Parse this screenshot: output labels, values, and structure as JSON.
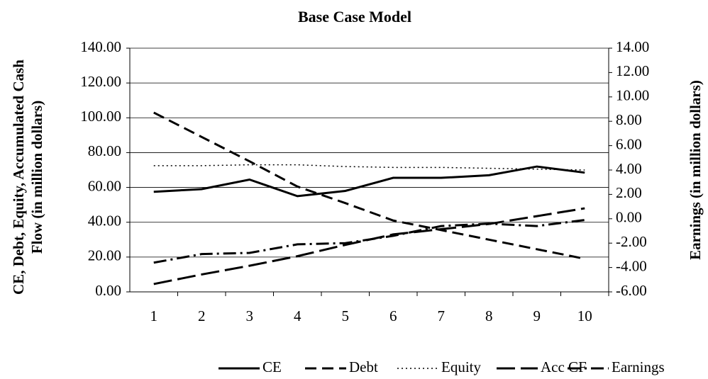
{
  "chart_data": {
    "type": "line",
    "title": "Base Case Model",
    "ylabel": [
      "CE, Debt, Equity, Accumulated Cash",
      "Flow (in million dollars)"
    ],
    "y2label": "Earnings (in million dollars)",
    "categories": [
      "1",
      "2",
      "3",
      "4",
      "5",
      "6",
      "7",
      "8",
      "9",
      "10"
    ],
    "ylim": [
      0,
      140
    ],
    "yticks": [
      {
        "value": 0,
        "label": "0.00"
      },
      {
        "value": 20,
        "label": "20.00"
      },
      {
        "value": 40,
        "label": "40.00"
      },
      {
        "value": 60,
        "label": "60.00"
      },
      {
        "value": 80,
        "label": "80.00"
      },
      {
        "value": 100,
        "label": "100.00"
      },
      {
        "value": 120,
        "label": "120.00"
      },
      {
        "value": 140,
        "label": "140.00"
      }
    ],
    "y2lim": [
      -6,
      14
    ],
    "y2ticks": [
      {
        "value": -6,
        "label": "-6.00"
      },
      {
        "value": -4,
        "label": "-4.00"
      },
      {
        "value": -2,
        "label": "-2.00"
      },
      {
        "value": 0,
        "label": "0.00"
      },
      {
        "value": 2,
        "label": "2.00"
      },
      {
        "value": 4,
        "label": "4.00"
      },
      {
        "value": 6,
        "label": "6.00"
      },
      {
        "value": 8,
        "label": "8.00"
      },
      {
        "value": 10,
        "label": "10.00"
      },
      {
        "value": 12,
        "label": "12.00"
      },
      {
        "value": 14,
        "label": "14.00"
      }
    ],
    "grid": true,
    "legend": "bottom",
    "series": [
      {
        "name": "CE",
        "color": "#000000",
        "dash": "solid",
        "values": [
          57.5,
          59,
          64.5,
          55,
          58,
          65.5,
          65.5,
          67,
          72,
          68.5
        ]
      },
      {
        "name": "Debt",
        "color": "#000000",
        "dash": "dashed",
        "values": [
          103,
          89,
          75,
          60.5,
          51,
          41,
          35.5,
          30,
          24.5,
          19
        ]
      },
      {
        "name": "Equity",
        "color": "#000000",
        "dash": "dotted",
        "values": [
          72.5,
          72.5,
          73,
          73,
          72,
          71.5,
          71.5,
          71,
          70.5,
          70
        ]
      },
      {
        "name": "Acc CF",
        "color": "#000000",
        "dash": "longdash",
        "values": [
          4.5,
          10,
          15,
          20.5,
          27,
          33,
          36,
          39,
          43.5,
          48
        ]
      },
      {
        "name": "Earnings",
        "color": "#000000",
        "dash": "dashdot",
        "axis": "y2",
        "values": [
          -3.6,
          -2.9,
          -2.8,
          -2.1,
          -2.0,
          -1.4,
          -0.6,
          -0.4,
          -0.6,
          -0.1
        ]
      }
    ]
  }
}
